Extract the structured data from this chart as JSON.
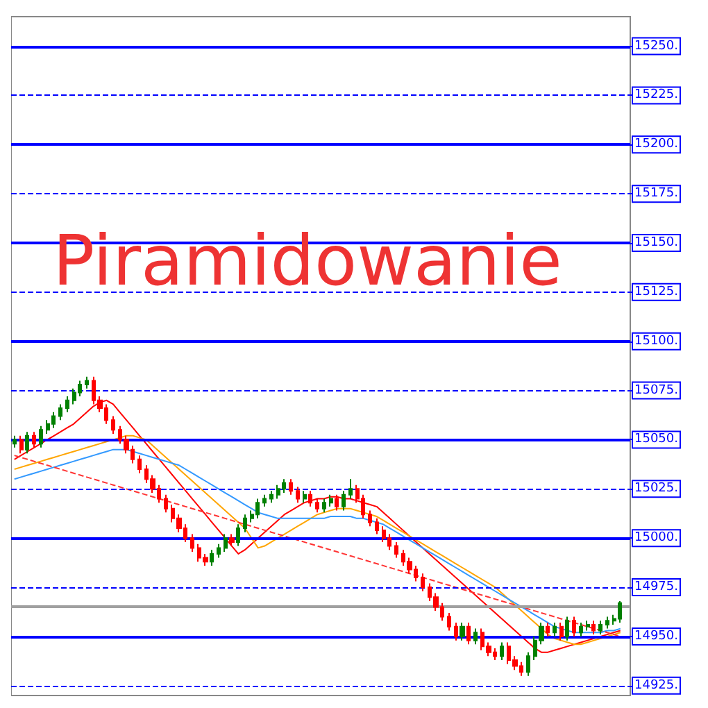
{
  "chart_data": {
    "type": "candlestick",
    "title": "Piramidowanie",
    "categories": [
      null,
      null,
      null,
      null,
      null,
      null,
      null,
      null,
      null,
      null,
      null,
      null,
      null,
      null,
      null,
      null,
      null,
      null,
      null,
      null,
      null,
      null,
      null,
      null,
      null,
      null,
      null,
      null,
      null,
      null,
      null,
      null,
      null,
      null,
      null,
      null,
      null,
      null,
      null,
      null,
      null,
      null,
      null,
      null,
      null,
      null,
      null,
      null,
      null,
      null,
      null,
      null,
      null,
      null,
      null,
      null,
      null,
      null,
      null,
      null,
      null,
      null,
      null,
      null,
      null,
      null,
      null,
      null,
      null,
      null,
      null,
      null,
      null,
      null,
      null,
      null,
      null,
      null,
      null,
      null,
      null,
      null,
      null,
      null,
      null,
      null,
      null,
      null,
      null,
      null,
      null,
      null,
      null
    ],
    "ohlc": [
      [
        15048,
        15052,
        15046,
        15050
      ],
      [
        15050,
        15052,
        15043,
        15045
      ],
      [
        15045,
        15054,
        15043,
        15052
      ],
      [
        15052,
        15054,
        15046,
        15048
      ],
      [
        15048,
        15057,
        15046,
        15055
      ],
      [
        15055,
        15060,
        15053,
        15058
      ],
      [
        15058,
        15064,
        15056,
        15062
      ],
      [
        15062,
        15068,
        15060,
        15066
      ],
      [
        15066,
        15072,
        15064,
        15070
      ],
      [
        15070,
        15076,
        15068,
        15074
      ],
      [
        15074,
        15080,
        15072,
        15078
      ],
      [
        15078,
        15082,
        15076,
        15080
      ],
      [
        15080,
        15082,
        15068,
        15070
      ],
      [
        15070,
        15072,
        15064,
        15066
      ],
      [
        15066,
        15068,
        15058,
        15060
      ],
      [
        15060,
        15062,
        15053,
        15055
      ],
      [
        15055,
        15057,
        15048,
        15050
      ],
      [
        15050,
        15052,
        15043,
        15045
      ],
      [
        15045,
        15047,
        15038,
        15040
      ],
      [
        15040,
        15042,
        15033,
        15035
      ],
      [
        15035,
        15037,
        15028,
        15030
      ],
      [
        15030,
        15032,
        15023,
        15025
      ],
      [
        15025,
        15027,
        15018,
        15020
      ],
      [
        15020,
        15022,
        15013,
        15015
      ],
      [
        15015,
        15017,
        15008,
        15010
      ],
      [
        15010,
        15012,
        15003,
        15005
      ],
      [
        15005,
        15007,
        14998,
        15000
      ],
      [
        15000,
        15002,
        14993,
        14995
      ],
      [
        14995,
        14997,
        14988,
        14990
      ],
      [
        14990,
        14992,
        14986,
        14988
      ],
      [
        14988,
        14994,
        14986,
        14992
      ],
      [
        14992,
        14997,
        14990,
        14995
      ],
      [
        14995,
        15002,
        14993,
        15000
      ],
      [
        15000,
        15002,
        14996,
        14998
      ],
      [
        14998,
        15007,
        14996,
        15005
      ],
      [
        15005,
        15012,
        15003,
        15010
      ],
      [
        15010,
        15014,
        15008,
        15012
      ],
      [
        15012,
        15020,
        15010,
        15018
      ],
      [
        15018,
        15022,
        15016,
        15020
      ],
      [
        15020,
        15024,
        15018,
        15022
      ],
      [
        15022,
        15027,
        15020,
        15025
      ],
      [
        15025,
        15030,
        15023,
        15028
      ],
      [
        15028,
        15030,
        15022,
        15024
      ],
      [
        15024,
        15026,
        15018,
        15020
      ],
      [
        15020,
        15024,
        15018,
        15022
      ],
      [
        15022,
        15024,
        15016,
        15018
      ],
      [
        15018,
        15020,
        15013,
        15015
      ],
      [
        15015,
        15020,
        15013,
        15018
      ],
      [
        15018,
        15022,
        15016,
        15020
      ],
      [
        15020,
        15022,
        15014,
        15016
      ],
      [
        15016,
        15024,
        15014,
        15022
      ],
      [
        15022,
        15030,
        15020,
        15025
      ],
      [
        15025,
        15027,
        15018,
        15020
      ],
      [
        15020,
        15022,
        15010,
        15012
      ],
      [
        15012,
        15014,
        15006,
        15008
      ],
      [
        15008,
        15010,
        15002,
        15004
      ],
      [
        15004,
        15006,
        14998,
        15000
      ],
      [
        15000,
        15002,
        14994,
        14996
      ],
      [
        14996,
        14998,
        14990,
        14992
      ],
      [
        14992,
        14994,
        14986,
        14988
      ],
      [
        14988,
        14990,
        14982,
        14984
      ],
      [
        14984,
        14986,
        14978,
        14980
      ],
      [
        14980,
        14982,
        14973,
        14975
      ],
      [
        14975,
        14977,
        14968,
        14970
      ],
      [
        14970,
        14972,
        14963,
        14965
      ],
      [
        14965,
        14967,
        14958,
        14960
      ],
      [
        14960,
        14962,
        14953,
        14955
      ],
      [
        14955,
        14957,
        14948,
        14950
      ],
      [
        14950,
        14957,
        14948,
        14955
      ],
      [
        14955,
        14957,
        14946,
        14948
      ],
      [
        14948,
        14954,
        14946,
        14952
      ],
      [
        14952,
        14954,
        14943,
        14945
      ],
      [
        14945,
        14947,
        14940,
        14942
      ],
      [
        14942,
        14944,
        14938,
        14940
      ],
      [
        14940,
        14947,
        14938,
        14945
      ],
      [
        14945,
        14947,
        14936,
        14938
      ],
      [
        14938,
        14940,
        14933,
        14935
      ],
      [
        14935,
        14937,
        14930,
        14932
      ],
      [
        14932,
        14942,
        14930,
        14940
      ],
      [
        14940,
        14950,
        14938,
        14948
      ],
      [
        14948,
        14957,
        14946,
        14955
      ],
      [
        14955,
        14957,
        14950,
        14952
      ],
      [
        14952,
        14957,
        14950,
        14955
      ],
      [
        14955,
        14957,
        14948,
        14950
      ],
      [
        14950,
        14960,
        14948,
        14958
      ],
      [
        14958,
        14960,
        14950,
        14952
      ],
      [
        14952,
        14957,
        14950,
        14955
      ],
      [
        14955,
        14958,
        14953,
        14956
      ],
      [
        14956,
        14958,
        14951,
        14953
      ],
      [
        14953,
        14958,
        14951,
        14956
      ],
      [
        14956,
        14960,
        14954,
        14958
      ],
      [
        14958,
        14961,
        14956,
        14959
      ],
      [
        14959,
        14968,
        14957,
        14967
      ]
    ],
    "series": [
      {
        "type": "line",
        "color": "#ff0000",
        "line_style": "solid",
        "values": [
          15040,
          15042,
          15044,
          15046,
          15048,
          15050,
          15052,
          15054,
          15056,
          15058,
          15061,
          15064,
          15067,
          15069,
          15070,
          15068,
          15064,
          15060,
          15056,
          15052,
          15048,
          15044,
          15040,
          15036,
          15032,
          15028,
          15024,
          15020,
          15016,
          15012,
          15008,
          15004,
          15000,
          14996,
          14992,
          14994,
          14997,
          15000,
          15003,
          15006,
          15009,
          15012,
          15014,
          15016,
          15018,
          15019,
          15020,
          15020,
          15021,
          15021,
          15020,
          15020,
          15019,
          15018,
          15017,
          15016,
          15013,
          15010,
          15007,
          15004,
          15001,
          14998,
          14995,
          14992,
          14989,
          14986,
          14983,
          14980,
          14977,
          14974,
          14971,
          14968,
          14965,
          14962,
          14959,
          14956,
          14953,
          14950,
          14947,
          14944,
          14942,
          14942,
          14943,
          14944,
          14945,
          14946,
          14947,
          14948,
          14949,
          14950,
          14951,
          14952,
          14953
        ]
      },
      {
        "type": "line",
        "color": "#ffa500",
        "line_style": "solid",
        "values": [
          15035,
          15036,
          15037,
          15038,
          15039,
          15040,
          15041,
          15042,
          15043,
          15044,
          15045,
          15046,
          15047,
          15048,
          15049,
          15050,
          15051,
          15052,
          15052,
          15051,
          15050,
          15047,
          15044,
          15041,
          15038,
          15035,
          15032,
          15029,
          15026,
          15023,
          15020,
          15017,
          15014,
          15011,
          15008,
          15005,
          15000,
          14995,
          14996,
          14998,
          15000,
          15002,
          15004,
          15006,
          15008,
          15010,
          15012,
          15013,
          15014,
          15015,
          15015,
          15015,
          15014,
          15013,
          15012,
          15011,
          15009,
          15007,
          15005,
          15003,
          15001,
          14999,
          14997,
          14995,
          14993,
          14991,
          14989,
          14987,
          14985,
          14983,
          14981,
          14979,
          14977,
          14975,
          14972,
          14969,
          14966,
          14963,
          14960,
          14957,
          14954,
          14951,
          14949,
          14948,
          14947,
          14946,
          14946,
          14947,
          14948,
          14949,
          14950,
          14951,
          14952
        ]
      },
      {
        "type": "line",
        "color": "#3399ff",
        "line_style": "solid",
        "values": [
          15030,
          15031,
          15032,
          15033,
          15034,
          15035,
          15036,
          15037,
          15038,
          15039,
          15040,
          15041,
          15042,
          15043,
          15044,
          15045,
          15045,
          15045,
          15044,
          15043,
          15042,
          15041,
          15040,
          15039,
          15038,
          15037,
          15035,
          15033,
          15031,
          15029,
          15027,
          15025,
          15023,
          15021,
          15019,
          15017,
          15015,
          15013,
          15012,
          15011,
          15010,
          15010,
          15010,
          15010,
          15010,
          15010,
          15010,
          15010,
          15011,
          15011,
          15011,
          15011,
          15010,
          15010,
          15009,
          15008,
          15007,
          15005,
          15003,
          15001,
          14999,
          14997,
          14995,
          14993,
          14991,
          14989,
          14987,
          14985,
          14983,
          14981,
          14979,
          14977,
          14975,
          14973,
          14971,
          14969,
          14967,
          14965,
          14963,
          14961,
          14959,
          14957,
          14955,
          14954,
          14953,
          14952,
          14952,
          14952,
          14952,
          14952,
          14953,
          14953,
          14954
        ]
      },
      {
        "type": "line",
        "color": "#ff3333",
        "line_style": "dashed",
        "values": [
          15042,
          15041,
          15040,
          15039,
          15038,
          15037,
          15036,
          15035,
          15034,
          15033,
          15032,
          15031,
          15030,
          15029,
          15028,
          15027,
          15026,
          15025,
          15024,
          15023,
          15022,
          15021,
          15020,
          15019,
          15018,
          15017,
          15016,
          15015,
          15014,
          15013,
          15012,
          15011,
          15010,
          15009,
          15008,
          15007,
          15006,
          15005,
          15004,
          15003,
          15002,
          15001,
          15000,
          14999,
          14998,
          14997,
          14996,
          14995,
          14994,
          14993,
          14992,
          14991,
          14990,
          14989,
          14988,
          14987,
          14986,
          14985,
          14984,
          14983,
          14982,
          14981,
          14980,
          14979,
          14978,
          14977,
          14976,
          14975,
          14974,
          14973,
          14972,
          14971,
          14970,
          14969,
          14968,
          14967,
          14966,
          14965,
          14964,
          14963,
          14962,
          14961,
          14960,
          14959,
          14958,
          14957,
          14956,
          14955,
          14954,
          14953,
          14952,
          14951,
          14950
        ]
      }
    ],
    "ylim": [
      14920,
      15265
    ],
    "yticks": [
      {
        "value": 14925,
        "label": "14925."
      },
      {
        "value": 14950,
        "label": "14950."
      },
      {
        "value": 14975,
        "label": "14975."
      },
      {
        "value": 15000,
        "label": "15000."
      },
      {
        "value": 15025,
        "label": "15025."
      },
      {
        "value": 15050,
        "label": "15050."
      },
      {
        "value": 15075,
        "label": "15075."
      },
      {
        "value": 15100,
        "label": "15100."
      },
      {
        "value": 15125,
        "label": "15125."
      },
      {
        "value": 15150,
        "label": "15150."
      },
      {
        "value": 15175,
        "label": "15175."
      },
      {
        "value": 15200,
        "label": "15200."
      },
      {
        "value": 15225,
        "label": "15225."
      },
      {
        "value": 15250,
        "label": "15250."
      }
    ],
    "ref_lines": [
      {
        "axis": "y",
        "value": 14925,
        "color": "#0000ff",
        "line_style": "dashed"
      },
      {
        "axis": "y",
        "value": 14950,
        "color": "#0000ff",
        "line_style": "solid"
      },
      {
        "axis": "y",
        "value": 14965,
        "color": "#a0a0a0",
        "line_style": "solid"
      },
      {
        "axis": "y",
        "value": 14975,
        "color": "#0000ff",
        "line_style": "dashed"
      },
      {
        "axis": "y",
        "value": 15000,
        "color": "#0000ff",
        "line_style": "solid"
      },
      {
        "axis": "y",
        "value": 15025,
        "color": "#0000ff",
        "line_style": "dashed"
      },
      {
        "axis": "y",
        "value": 15050,
        "color": "#0000ff",
        "line_style": "solid"
      },
      {
        "axis": "y",
        "value": 15075,
        "color": "#0000ff",
        "line_style": "dashed"
      },
      {
        "axis": "y",
        "value": 15100,
        "color": "#0000ff",
        "line_style": "solid"
      },
      {
        "axis": "y",
        "value": 15125,
        "color": "#0000ff",
        "line_style": "dashed"
      },
      {
        "axis": "y",
        "value": 15150,
        "color": "#0000ff",
        "line_style": "solid"
      },
      {
        "axis": "y",
        "value": 15175,
        "color": "#0000ff",
        "line_style": "dashed"
      },
      {
        "axis": "y",
        "value": 15200,
        "color": "#0000ff",
        "line_style": "solid"
      },
      {
        "axis": "y",
        "value": 15225,
        "color": "#0000ff",
        "line_style": "dashed"
      },
      {
        "axis": "y",
        "value": 15250,
        "color": "#0000ff",
        "line_style": "solid"
      }
    ],
    "grid": false,
    "tick_labels": "y"
  }
}
